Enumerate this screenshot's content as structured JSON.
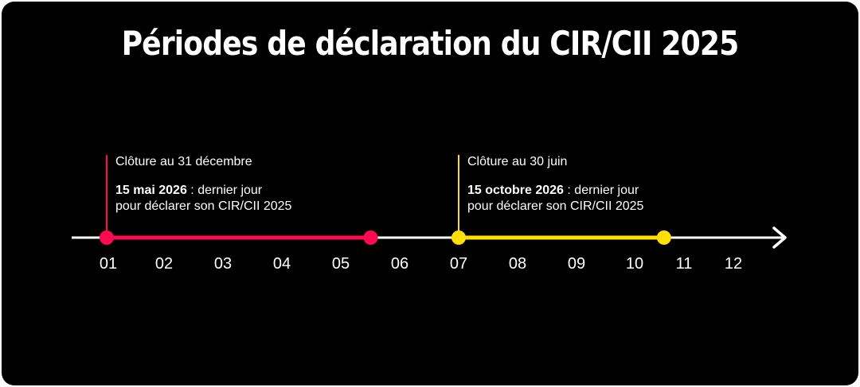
{
  "title": "Périodes de déclaration du CIR/CII 2025",
  "colors": {
    "background": "#000000",
    "text": "#ffffff",
    "period1": "#ff0a50",
    "period2": "#ffe000",
    "axis": "#ffffff"
  },
  "months": [
    "01",
    "02",
    "03",
    "04",
    "05",
    "06",
    "07",
    "08",
    "09",
    "10",
    "11",
    "12"
  ],
  "periods": [
    {
      "closing": "Clôture au 31 décembre",
      "deadline_bold": "15 mai 2026",
      "deadline_rest": " : dernier jour",
      "deadline_line2": "pour déclarer son CIR/CII 2025",
      "start_month": 1,
      "end_month": 5.5
    },
    {
      "closing": "Clôture au 30 juin",
      "deadline_bold": "15 octobre 2026",
      "deadline_rest": " : dernier jour",
      "deadline_line2": "pour déclarer son CIR/CII 2025",
      "start_month": 7,
      "end_month": 10.5
    }
  ]
}
